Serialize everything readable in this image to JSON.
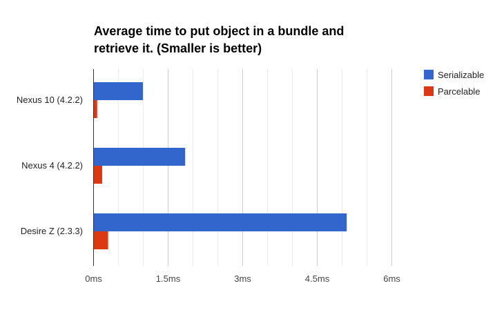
{
  "chart_data": {
    "type": "bar",
    "orientation": "horizontal",
    "title_lines": [
      "Average time to put object in a bundle and",
      "retrieve it. (Smaller is better)"
    ],
    "categories": [
      "Nexus 10 (4.2.2)",
      "Nexus 4 (4.2.2)",
      "Desire Z (2.3.3)"
    ],
    "series": [
      {
        "name": "Serializable",
        "color": "#3366cc",
        "values": [
          1.0,
          1.85,
          5.1
        ]
      },
      {
        "name": "Parcelable",
        "color": "#dc3912",
        "values": [
          0.08,
          0.18,
          0.3
        ]
      }
    ],
    "xlim": [
      0,
      7.5
    ],
    "x_ticks": [
      {
        "value": 0,
        "label": "0ms"
      },
      {
        "value": 1.5,
        "label": "1.5ms"
      },
      {
        "value": 3,
        "label": "3ms"
      },
      {
        "value": 4.5,
        "label": "4.5ms"
      },
      {
        "value": 6,
        "label": "6ms"
      }
    ],
    "minor_gridlines": [
      0.5,
      1,
      2,
      2.5,
      3.5,
      4,
      5,
      5.5
    ],
    "grid": true,
    "legend_position": "right-top",
    "xlabel": "",
    "ylabel": ""
  }
}
